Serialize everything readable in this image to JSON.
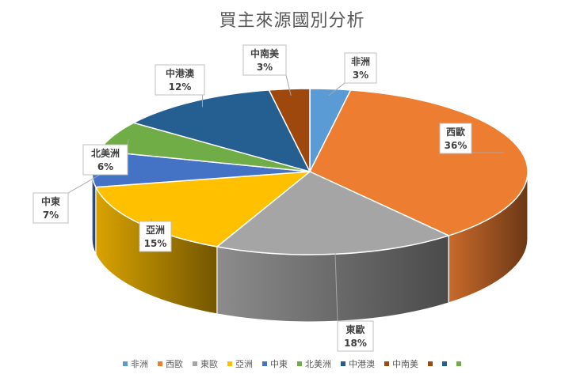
{
  "chart_data": {
    "type": "pie",
    "title": "買主來源國別分析",
    "style": "3d",
    "categories": [
      "非洲",
      "西歐",
      "東歐",
      "亞洲",
      "中東",
      "北美洲",
      "中港澳",
      "中南美"
    ],
    "values": [
      3,
      36,
      18,
      15,
      7,
      6,
      12,
      3
    ],
    "labels": [
      "3%",
      "36%",
      "18%",
      "15%",
      "7%",
      "6%",
      "12%",
      "3%"
    ],
    "colors": [
      "#5B9BD5",
      "#ED7D31",
      "#A5A5A5",
      "#FFC000",
      "#4472C4",
      "#70AD47",
      "#255E91",
      "#9E480E"
    ],
    "legend_position": "bottom",
    "extra_legend_colors": [
      "#9E480E",
      "#255E91",
      "#70AD47"
    ]
  }
}
